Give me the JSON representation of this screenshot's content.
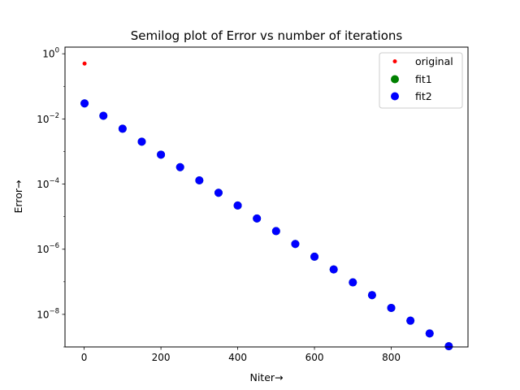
{
  "chart_data": {
    "type": "scatter",
    "title": "Semilog plot of Error vs number of iterations",
    "xlabel": "Niter→",
    "ylabel": "Error→",
    "xlim": [
      -50,
      1000
    ],
    "ylim": [
      1e-09,
      1.6
    ],
    "yscale": "log",
    "grid": false,
    "legend_position": "top-right",
    "xticks": [
      0,
      200,
      400,
      600,
      800
    ],
    "xtick_labels": [
      "0",
      "200",
      "400",
      "600",
      "800"
    ],
    "yticks": [
      1,
      0.01,
      0.0001,
      1e-06,
      1e-08
    ],
    "ytick_labels": [
      {
        "base": "10",
        "exp": "0"
      },
      {
        "base": "10",
        "exp": "−2"
      },
      {
        "base": "10",
        "exp": "−4"
      },
      {
        "base": "10",
        "exp": "−6"
      },
      {
        "base": "10",
        "exp": "−8"
      }
    ],
    "series": [
      {
        "name": "original",
        "color": "#ff0000",
        "marker": "small-dot",
        "x": [
          1
        ],
        "y": [
          0.5
        ]
      },
      {
        "name": "fit1",
        "color": "#008000",
        "marker": "circle",
        "x": [
          1,
          50,
          100,
          150,
          200,
          250,
          300,
          350,
          400,
          450,
          500,
          550,
          600,
          650,
          700,
          750,
          800,
          850,
          900,
          950
        ],
        "y": [
          0.03,
          0.0125,
          0.005,
          0.002,
          0.0008,
          0.00033,
          0.00013,
          5.4e-05,
          2.2e-05,
          8.8e-06,
          3.6e-06,
          1.45e-06,
          5.9e-07,
          2.4e-07,
          9.6e-08,
          3.9e-08,
          1.58e-08,
          6.4e-09,
          2.6e-09,
          1.05e-09
        ]
      },
      {
        "name": "fit2",
        "color": "#0000ff",
        "marker": "circle",
        "x": [
          1,
          50,
          100,
          150,
          200,
          250,
          300,
          350,
          400,
          450,
          500,
          550,
          600,
          650,
          700,
          750,
          800,
          850,
          900,
          950
        ],
        "y": [
          0.03,
          0.0125,
          0.005,
          0.002,
          0.0008,
          0.00033,
          0.00013,
          5.4e-05,
          2.2e-05,
          8.8e-06,
          3.6e-06,
          1.45e-06,
          5.9e-07,
          2.4e-07,
          9.6e-08,
          3.9e-08,
          1.58e-08,
          6.4e-09,
          2.6e-09,
          1.05e-09
        ]
      }
    ]
  }
}
